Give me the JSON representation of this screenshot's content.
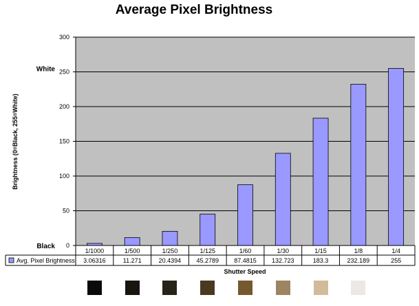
{
  "chart_data": {
    "type": "bar",
    "title": "Average Pixel Brightness",
    "xlabel": "Shutter Speed",
    "ylabel": "Brightness (0=Black, 255=White)",
    "ylim": [
      0,
      300
    ],
    "yticks": [
      0,
      50,
      100,
      150,
      200,
      250,
      300
    ],
    "grid": true,
    "categories": [
      "1/1000",
      "1/500",
      "1/250",
      "1/125",
      "1/60",
      "1/30",
      "1/15",
      "1/8",
      "1/4"
    ],
    "series": [
      {
        "name": "Avg. Pixel Brightness",
        "values": [
          3.06316,
          11.271,
          20.4394,
          45.2789,
          87.4815,
          132.723,
          183.3,
          232.189,
          255
        ],
        "labels": [
          "3.06316",
          "11.271",
          "20.4394",
          "45.2789",
          "87.4815",
          "132.723",
          "183.3",
          "232.189",
          "255"
        ],
        "color": "#9999ff"
      }
    ],
    "level_labels": [
      {
        "text": "White",
        "value": 255
      },
      {
        "text": "Black",
        "value": 0
      }
    ],
    "legend": "data-table",
    "colors": {
      "plot_background": "#c0c0c0",
      "grid": "#000000"
    }
  },
  "swatch_colors": [
    "#0a0a08",
    "#19140e",
    "#262418",
    "#4b3820",
    "#76582e",
    "#9e8462",
    "#d2bb9a",
    "#ece9e4",
    "#ffffff"
  ]
}
